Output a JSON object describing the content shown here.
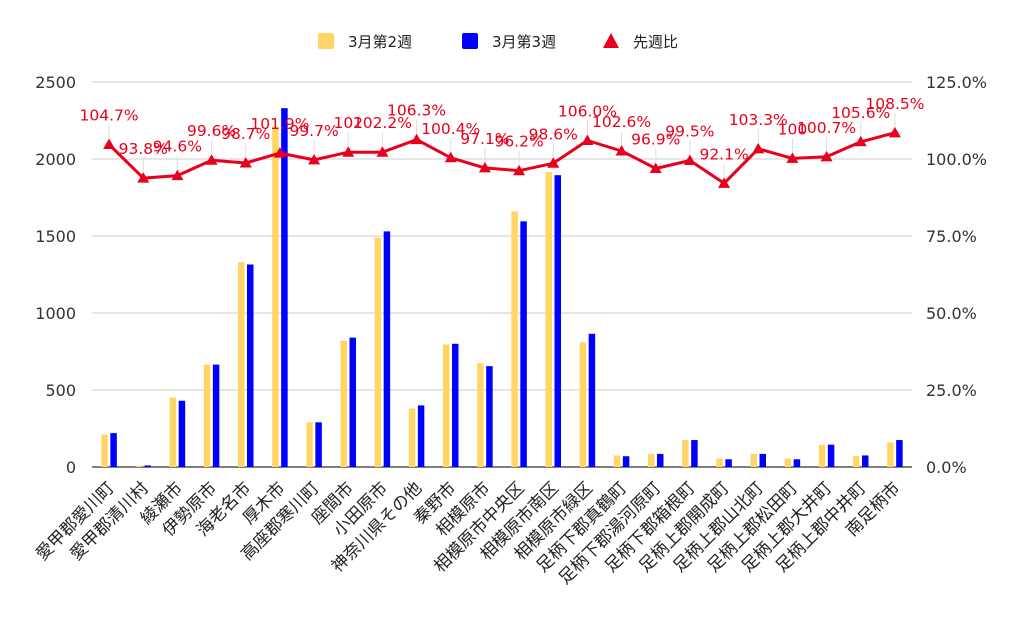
{
  "chart_data": {
    "type": "bar",
    "title": "",
    "xlabel": "",
    "ylabel": "",
    "categories": [
      "愛甲郡愛川町",
      "愛甲郡清川村",
      "綾瀬市",
      "伊勢原市",
      "海老名市",
      "厚木市",
      "高座郡寒川町",
      "座間市",
      "小田原市",
      "神奈川県その他",
      "秦野市",
      "相模原市",
      "相模原市中央区",
      "相模原市南区",
      "相模原市緑区",
      "足柄下郡真鶴町",
      "足柄下郡湯河原町",
      "足柄下郡箱根町",
      "足柄上郡開成町",
      "足柄上郡山北町",
      "足柄上郡松田町",
      "足柄上郡大井町",
      "足柄上郡中井町",
      "南足柄市"
    ],
    "series": [
      {
        "name": "3月第2週",
        "kind": "bar",
        "color": "#FFD666",
        "values": [
          210,
          10,
          450,
          665,
          1330,
          2210,
          290,
          820,
          1490,
          380,
          795,
          675,
          1660,
          1915,
          810,
          75,
          85,
          175,
          55,
          85,
          55,
          145,
          70,
          160
        ]
      },
      {
        "name": "3月第3週",
        "kind": "bar",
        "color": "#0000FF",
        "values": [
          220,
          10,
          430,
          665,
          1315,
          2330,
          290,
          840,
          1530,
          400,
          800,
          655,
          1595,
          1895,
          865,
          70,
          85,
          175,
          50,
          85,
          50,
          145,
          75,
          175
        ]
      },
      {
        "name": "先週比",
        "kind": "line",
        "axis": "right",
        "color": "#E8001C",
        "values": [
          104.7,
          93.8,
          94.6,
          99.6,
          98.7,
          101.9,
          99.7,
          102.2,
          102.2,
          106.3,
          100.4,
          97.1,
          96.2,
          98.6,
          106.0,
          102.6,
          96.9,
          99.5,
          92.1,
          103.3,
          100.2,
          100.7,
          105.6,
          108.5
        ],
        "labels": [
          "104.7%",
          "93.8%",
          "94.6%",
          "99.6%",
          "98.7%",
          "101.9%",
          "99.7%",
          "102",
          "102.2%",
          "106.3%",
          "100.4%",
          "97.1%",
          "96.2%",
          "98.6%",
          "106.0%",
          "102.6%",
          "96.9%",
          "99.5%",
          "92.1%",
          "103.3%",
          "100",
          "100.7%",
          "105.6%",
          "108.5%"
        ]
      }
    ],
    "ylim": [
      0,
      2500
    ],
    "yticks": [
      "0",
      "500",
      "1000",
      "1500",
      "2000",
      "2500"
    ],
    "y2lim": [
      0,
      125
    ],
    "y2ticks": [
      "0.0%",
      "25.0%",
      "50.0%",
      "75.0%",
      "100.0%",
      "125.0%"
    ],
    "legend": {
      "position": "top",
      "items": [
        "3月第2週",
        "3月第3週",
        "先週比"
      ]
    },
    "grid": true
  }
}
